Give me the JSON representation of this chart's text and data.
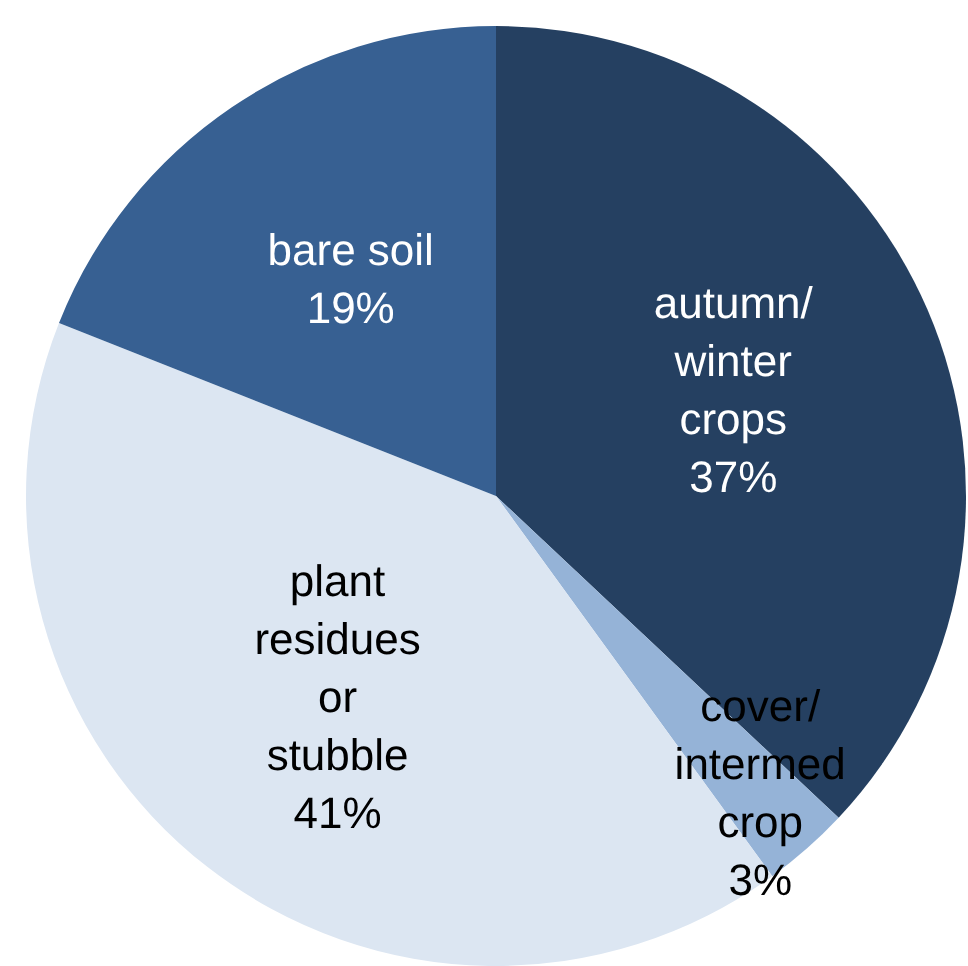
{
  "chart_data": {
    "type": "pie",
    "categories": [
      "autumn/winter crops",
      "cover/intermed crop",
      "plant residues or stubble",
      "bare soil"
    ],
    "values": [
      37,
      3,
      41,
      19
    ],
    "colors": [
      "#254061",
      "#95b3d7",
      "#dce6f2",
      "#376092"
    ],
    "value_labels": [
      "37%",
      "3%",
      "41%",
      "19%"
    ],
    "legend": false
  }
}
